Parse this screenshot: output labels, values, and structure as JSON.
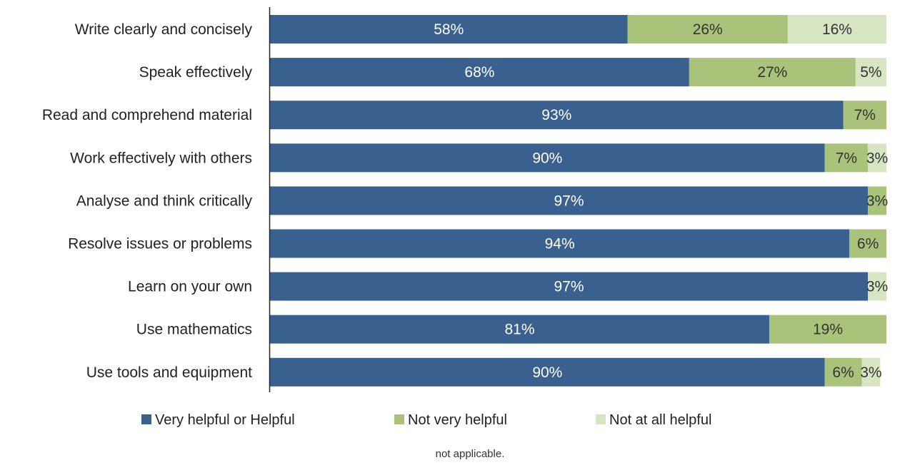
{
  "chart_data": {
    "type": "bar",
    "orientation": "horizontal",
    "stacked": true,
    "categories": [
      "Write clearly and concisely",
      "Speak effectively",
      "Read and comprehend material",
      "Work effectively with others",
      "Analyse and think critically",
      "Resolve issues or problems",
      "Learn on your own",
      "Use mathematics",
      "Use tools and equipment"
    ],
    "series": [
      {
        "name": "Very helpful or Helpful",
        "color": "#3a6090",
        "values": [
          58,
          68,
          93,
          90,
          97,
          94,
          97,
          81,
          90
        ],
        "labels": [
          "58%",
          "68%",
          "93%",
          "90%",
          "97%",
          "94%",
          "97%",
          "81%",
          "90%"
        ],
        "label_color": "#ffffff"
      },
      {
        "name": "Not very helpful",
        "color": "#a9c47a",
        "values": [
          26,
          27,
          7,
          7,
          3,
          6,
          0,
          19,
          6
        ],
        "labels": [
          "26%",
          "27%",
          "7%",
          "7%",
          "3%",
          "6%",
          "",
          "19%",
          "6%"
        ],
        "label_color": "#333333"
      },
      {
        "name": "Not at all helpful",
        "color": "#d8e5c2",
        "values": [
          16,
          5,
          0,
          3,
          0,
          0,
          3,
          0,
          3
        ],
        "labels": [
          "16%",
          "5%",
          "",
          "3%",
          "",
          "",
          "3%",
          "",
          "3%"
        ],
        "label_color": "#333333"
      }
    ],
    "xlim": [
      0,
      100
    ],
    "grid": false,
    "legend_position": "bottom",
    "footnote": "not applicable."
  }
}
